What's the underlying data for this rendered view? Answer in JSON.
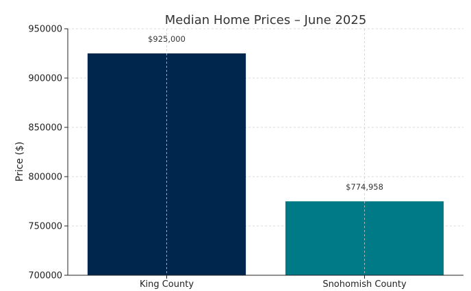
{
  "chart_data": {
    "type": "bar",
    "title": "Median Home Prices – June 2025",
    "xlabel": "",
    "ylabel": "Price ($)",
    "categories": [
      "King County",
      "Snohomish County"
    ],
    "values": [
      925000,
      774958
    ],
    "value_labels": [
      "$925,000",
      "$774,958"
    ],
    "colors": [
      "#00264D",
      "#007A87"
    ],
    "ylim": [
      700000,
      950000
    ],
    "yticks": [
      700000,
      750000,
      800000,
      850000,
      900000,
      950000
    ],
    "ytick_labels": [
      "700000",
      "750000",
      "800000",
      "850000",
      "900000",
      "950000"
    ],
    "grid": true,
    "legend": "none"
  }
}
